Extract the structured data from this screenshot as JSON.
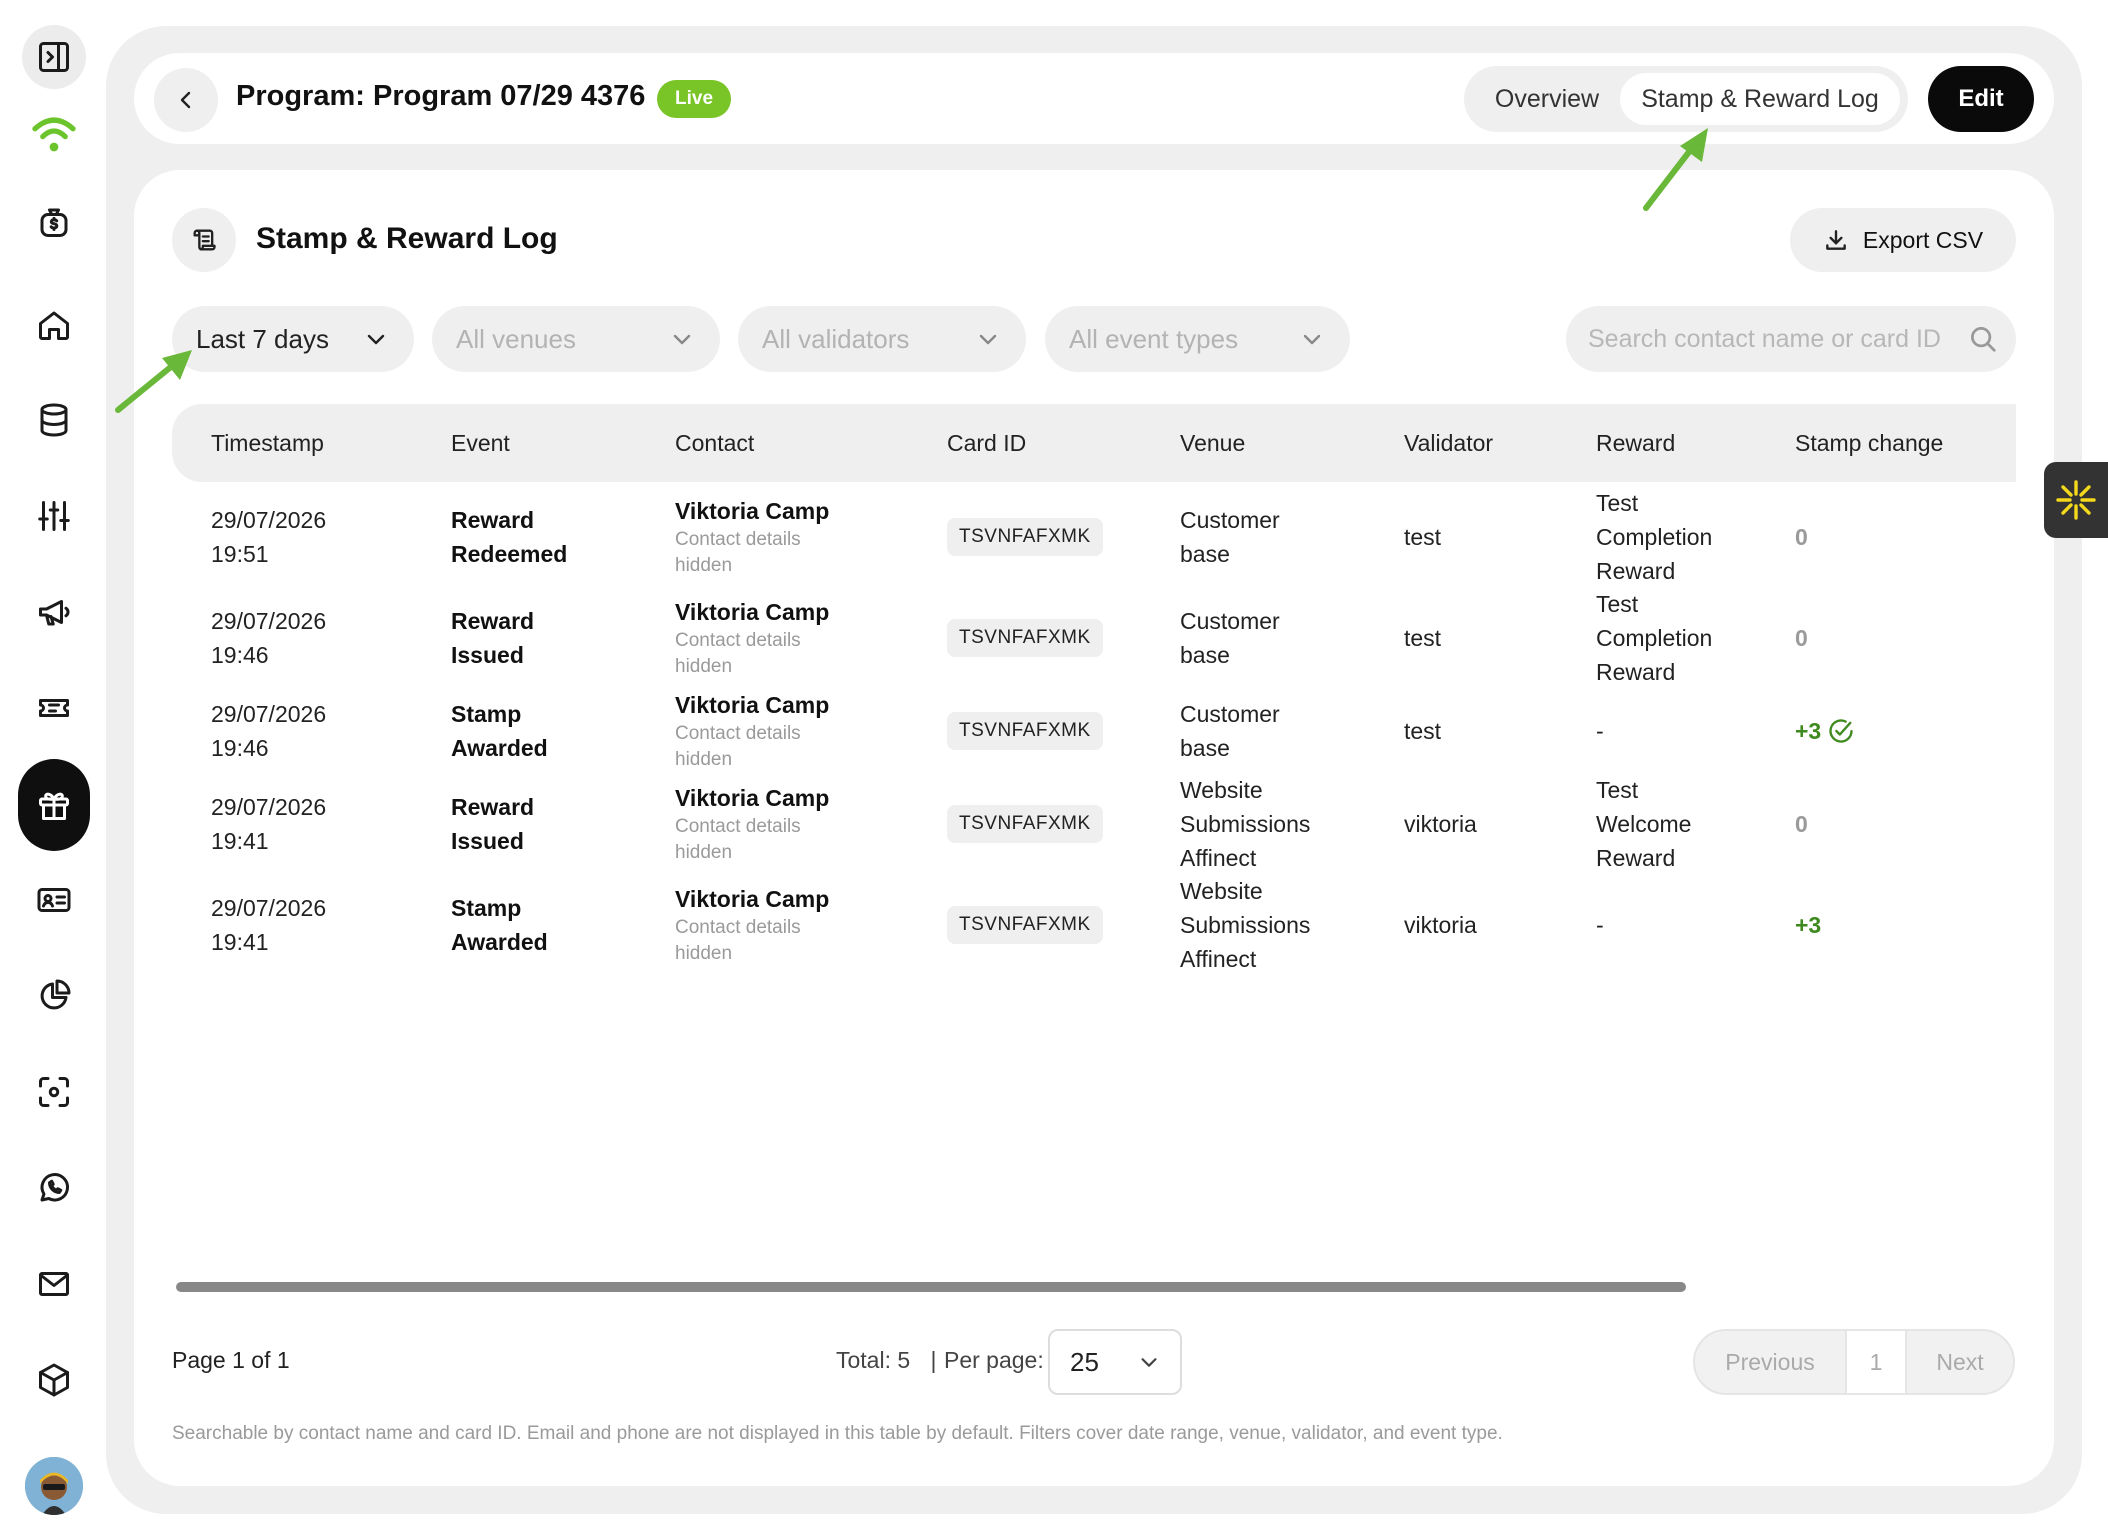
{
  "header": {
    "program_title": "Program: Program 07/29 4376",
    "status_badge": "Live",
    "tabs": [
      {
        "label": "Overview",
        "active": false
      },
      {
        "label": "Stamp & Reward Log",
        "active": true
      }
    ],
    "edit_label": "Edit"
  },
  "section": {
    "title": "Stamp & Reward Log",
    "export_label": "Export CSV"
  },
  "filters": {
    "date_range": "Last 7 days",
    "venues": "All venues",
    "validators": "All validators",
    "event_types": "All event types",
    "search_placeholder": "Search contact name or card ID"
  },
  "table": {
    "columns": [
      "Timestamp",
      "Event",
      "Contact",
      "Card ID",
      "Venue",
      "Validator",
      "Reward",
      "Stamp change"
    ],
    "rows": [
      {
        "timestamp": [
          "29/07/2026",
          "19:51"
        ],
        "event": [
          "Reward",
          "Redeemed"
        ],
        "contact_name": "Viktoria Camp",
        "contact_sub": [
          "Contact details",
          "hidden"
        ],
        "card_id": "TSVNFAFXMK",
        "venue": [
          "Customer",
          "base"
        ],
        "validator": "test",
        "reward": [
          "Test",
          "Completion",
          "Reward"
        ],
        "stamp_change": "0",
        "stamp_verified": false
      },
      {
        "timestamp": [
          "29/07/2026",
          "19:46"
        ],
        "event": [
          "Reward",
          "Issued"
        ],
        "contact_name": "Viktoria Camp",
        "contact_sub": [
          "Contact details",
          "hidden"
        ],
        "card_id": "TSVNFAFXMK",
        "venue": [
          "Customer",
          "base"
        ],
        "validator": "test",
        "reward": [
          "Test",
          "Completion",
          "Reward"
        ],
        "stamp_change": "0",
        "stamp_verified": false
      },
      {
        "timestamp": [
          "29/07/2026",
          "19:46"
        ],
        "event": [
          "Stamp",
          "Awarded"
        ],
        "contact_name": "Viktoria Camp",
        "contact_sub": [
          "Contact details",
          "hidden"
        ],
        "card_id": "TSVNFAFXMK",
        "venue": [
          "Customer",
          "base"
        ],
        "validator": "test",
        "reward": [
          "-"
        ],
        "stamp_change": "+3",
        "stamp_verified": true
      },
      {
        "timestamp": [
          "29/07/2026",
          "19:41"
        ],
        "event": [
          "Reward",
          "Issued"
        ],
        "contact_name": "Viktoria Camp",
        "contact_sub": [
          "Contact details",
          "hidden"
        ],
        "card_id": "TSVNFAFXMK",
        "venue": [
          "Website",
          "Submissions",
          "Affinect"
        ],
        "validator": "viktoria",
        "reward": [
          "Test",
          "Welcome",
          "Reward"
        ],
        "stamp_change": "0",
        "stamp_verified": false
      },
      {
        "timestamp": [
          "29/07/2026",
          "19:41"
        ],
        "event": [
          "Stamp",
          "Awarded"
        ],
        "contact_name": "Viktoria Camp",
        "contact_sub": [
          "Contact details",
          "hidden"
        ],
        "card_id": "TSVNFAFXMK",
        "venue": [
          "Website",
          "Submissions",
          "Affinect"
        ],
        "validator": "viktoria",
        "reward": [
          "-"
        ],
        "stamp_change": "+3",
        "stamp_verified": false
      }
    ]
  },
  "pagination": {
    "page_info": "Page 1 of 1",
    "total": "Total: 5",
    "separator": "|",
    "per_page_label": "Per page:",
    "per_page_value": "25",
    "previous_label": "Previous",
    "current_page": "1",
    "next_label": "Next"
  },
  "footnote": "Searchable by contact name and card ID. Email and phone are not displayed in this table by default. Filters cover date range, venue, validator, and event type.",
  "colors": {
    "live_badge": "#79c426",
    "stamp_positive": "#3e8a1e",
    "brand_logo": "#6cc42c",
    "annotation_arrow": "#6ab83a",
    "widget_accent": "#f4d81b"
  },
  "rail_icons": [
    "sidebar-toggle-icon",
    "brand-logo-icon",
    "money-bag-icon",
    "home-icon",
    "database-icon",
    "sliders-icon",
    "megaphone-icon",
    "ticket-icon",
    "gift-icon",
    "id-card-icon",
    "pie-chart-icon",
    "scan-face-icon",
    "whatsapp-icon",
    "mail-icon",
    "box-icon",
    "avatar"
  ]
}
